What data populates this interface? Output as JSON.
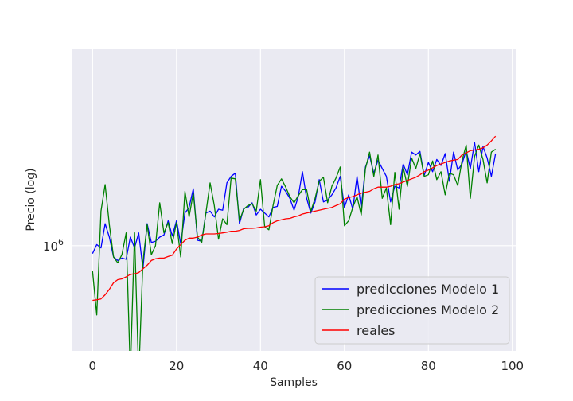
{
  "chart_data": {
    "type": "line",
    "xlabel": "Samples",
    "ylabel": "Precio (log)",
    "ylog": true,
    "xlim": [
      -4.8,
      100.8
    ],
    "ylim": [
      620000,
      2450000
    ],
    "xticks": [
      0,
      20,
      40,
      60,
      80,
      100
    ],
    "xtick_labels": [
      "0",
      "20",
      "40",
      "60",
      "80",
      "100"
    ],
    "yticks": [
      1000000
    ],
    "ytick_labels": [
      "10"
    ],
    "ytick_exponents": [
      "6"
    ],
    "grid": true,
    "legend_position": "lower-right",
    "series": [
      {
        "name": "predicciones Modelo 1",
        "color": "#0000ff",
        "x": [
          0,
          1,
          2,
          3,
          4,
          5,
          6,
          7,
          8,
          9,
          10,
          11,
          12,
          13,
          14,
          15,
          16,
          17,
          18,
          19,
          20,
          21,
          22,
          23,
          24,
          25,
          26,
          27,
          28,
          29,
          30,
          31,
          32,
          33,
          34,
          35,
          36,
          37,
          38,
          39,
          40,
          41,
          42,
          43,
          44,
          45,
          46,
          47,
          48,
          49,
          50,
          51,
          52,
          53,
          54,
          55,
          56,
          57,
          58,
          59,
          60,
          61,
          62,
          63,
          64,
          65,
          66,
          67,
          68,
          69,
          70,
          71,
          72,
          73,
          74,
          75,
          76,
          77,
          78,
          79,
          80,
          81,
          82,
          83,
          84,
          85,
          86,
          87,
          88,
          89,
          90,
          91,
          92,
          93,
          94,
          95,
          96
        ],
        "values": [
          965000,
          1005000,
          990000,
          1105000,
          1040000,
          950000,
          935000,
          945000,
          940000,
          1040000,
          990000,
          1060000,
          900000,
          1105000,
          1015000,
          1020000,
          1040000,
          1050000,
          1120000,
          1045000,
          1120000,
          1010000,
          1160000,
          1190000,
          1295000,
          1025000,
          1020000,
          1160000,
          1170000,
          1140000,
          1180000,
          1175000,
          1330000,
          1370000,
          1390000,
          1105000,
          1185000,
          1190000,
          1215000,
          1150000,
          1180000,
          1160000,
          1140000,
          1190000,
          1195000,
          1310000,
          1280000,
          1240000,
          1175000,
          1250000,
          1400000,
          1240000,
          1160000,
          1220000,
          1350000,
          1220000,
          1230000,
          1260000,
          1300000,
          1370000,
          1190000,
          1260000,
          1180000,
          1370000,
          1185000,
          1430000,
          1505000,
          1390000,
          1475000,
          1420000,
          1370000,
          1220000,
          1310000,
          1300000,
          1450000,
          1380000,
          1530000,
          1510000,
          1535000,
          1375000,
          1460000,
          1400000,
          1480000,
          1440000,
          1520000,
          1340000,
          1530000,
          1410000,
          1450000,
          1540000,
          1420000,
          1600000,
          1400000,
          1570000,
          1490000,
          1370000,
          1520000
        ]
      },
      {
        "name": "predicciones Modelo 2",
        "color": "#008000",
        "x": [
          0,
          1,
          2,
          3,
          4,
          5,
          6,
          7,
          8,
          9,
          10,
          11,
          12,
          13,
          14,
          15,
          16,
          17,
          18,
          19,
          20,
          21,
          22,
          23,
          24,
          25,
          26,
          27,
          28,
          29,
          30,
          31,
          32,
          33,
          34,
          35,
          36,
          37,
          38,
          39,
          40,
          41,
          42,
          43,
          44,
          45,
          46,
          47,
          48,
          49,
          50,
          51,
          52,
          53,
          54,
          55,
          56,
          57,
          58,
          59,
          60,
          61,
          62,
          63,
          64,
          65,
          66,
          67,
          68,
          69,
          70,
          71,
          72,
          73,
          74,
          75,
          76,
          77,
          78,
          79,
          80,
          81,
          82,
          83,
          84,
          85,
          86,
          87,
          88,
          89,
          90,
          91,
          92,
          93,
          94,
          95,
          96
        ],
        "values": [
          890000,
          730000,
          1170000,
          1320000,
          1100000,
          950000,
          925000,
          960000,
          1060000,
          560000,
          1060000,
          550000,
          930000,
          1100000,
          960000,
          1000000,
          1215000,
          1060000,
          1110000,
          1010000,
          1110000,
          950000,
          1280000,
          1140000,
          1270000,
          1040000,
          1015000,
          1160000,
          1330000,
          1200000,
          1030000,
          1130000,
          1100000,
          1360000,
          1355000,
          1120000,
          1180000,
          1200000,
          1210000,
          1170000,
          1350000,
          1090000,
          1075000,
          1200000,
          1315000,
          1355000,
          1305000,
          1250000,
          1215000,
          1255000,
          1290000,
          1290000,
          1170000,
          1240000,
          1340000,
          1365000,
          1215000,
          1310000,
          1360000,
          1430000,
          1095000,
          1120000,
          1190000,
          1250000,
          1150000,
          1420000,
          1530000,
          1370000,
          1510000,
          1240000,
          1300000,
          1100000,
          1395000,
          1180000,
          1430000,
          1310000,
          1490000,
          1420000,
          1520000,
          1370000,
          1380000,
          1470000,
          1350000,
          1400000,
          1260000,
          1390000,
          1380000,
          1315000,
          1470000,
          1580000,
          1240000,
          1500000,
          1580000,
          1480000,
          1330000,
          1530000,
          1550000
        ]
      },
      {
        "name": "reales",
        "color": "#ff0000",
        "x": [
          0,
          1,
          2,
          3,
          4,
          5,
          6,
          7,
          8,
          9,
          10,
          11,
          12,
          13,
          14,
          15,
          16,
          17,
          18,
          19,
          20,
          21,
          22,
          23,
          24,
          25,
          26,
          27,
          28,
          29,
          30,
          31,
          32,
          33,
          34,
          35,
          36,
          37,
          38,
          39,
          40,
          41,
          42,
          43,
          44,
          45,
          46,
          47,
          48,
          49,
          50,
          51,
          52,
          53,
          54,
          55,
          56,
          57,
          58,
          59,
          60,
          61,
          62,
          63,
          64,
          65,
          66,
          67,
          68,
          69,
          70,
          71,
          72,
          73,
          74,
          75,
          76,
          77,
          78,
          79,
          80,
          81,
          82,
          83,
          84,
          85,
          86,
          87,
          88,
          89,
          90,
          91,
          92,
          93,
          94,
          95,
          96
        ],
        "values": [
          780000,
          782000,
          785000,
          800000,
          820000,
          845000,
          857000,
          860000,
          868000,
          878000,
          880000,
          885000,
          900000,
          915000,
          935000,
          942000,
          945000,
          945000,
          952000,
          958000,
          985000,
          1005000,
          1025000,
          1035000,
          1035000,
          1040000,
          1050000,
          1055000,
          1055000,
          1055000,
          1057000,
          1060000,
          1063000,
          1068000,
          1068000,
          1072000,
          1080000,
          1082000,
          1082000,
          1084000,
          1088000,
          1090000,
          1095000,
          1110000,
          1120000,
          1125000,
          1130000,
          1132000,
          1140000,
          1145000,
          1155000,
          1160000,
          1165000,
          1170000,
          1175000,
          1180000,
          1185000,
          1190000,
          1200000,
          1210000,
          1235000,
          1245000,
          1250000,
          1260000,
          1270000,
          1275000,
          1280000,
          1295000,
          1305000,
          1305000,
          1305000,
          1310000,
          1320000,
          1325000,
          1335000,
          1345000,
          1355000,
          1365000,
          1380000,
          1400000,
          1410000,
          1425000,
          1440000,
          1450000,
          1460000,
          1470000,
          1475000,
          1480000,
          1510000,
          1525000,
          1540000,
          1545000,
          1550000,
          1560000,
          1580000,
          1610000,
          1645000
        ]
      }
    ]
  }
}
